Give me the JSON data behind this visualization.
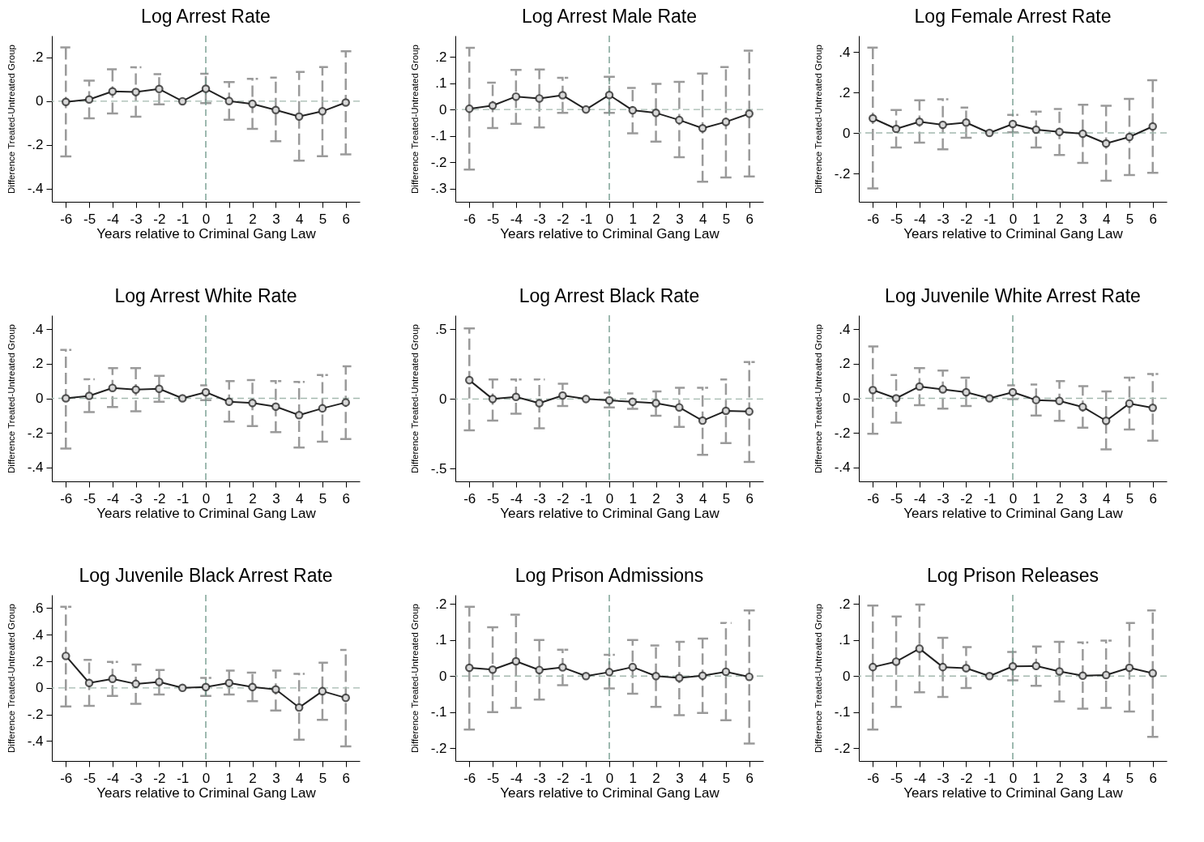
{
  "chart_data": [
    {
      "type": "line",
      "title": "Log Arrest Rate",
      "xlabel": "Years relative to Criminal Gang Law",
      "ylabel": "Difference Treated-Untreated Group",
      "color": "#222222",
      "marker": "circle",
      "line_style": "solid",
      "grid": false,
      "x": [
        -6,
        -5,
        -4,
        -3,
        -2,
        -1,
        0,
        1,
        2,
        3,
        4,
        5,
        6
      ],
      "values": [
        -0.003,
        0.008,
        0.045,
        0.042,
        0.056,
        0,
        0.057,
        0.001,
        -0.012,
        -0.04,
        -0.07,
        -0.046,
        -0.006
      ],
      "errors": [
        [
          -0.252,
          0.246
        ],
        [
          -0.078,
          0.094
        ],
        [
          -0.056,
          0.146
        ],
        [
          -0.071,
          0.155
        ],
        [
          -0.014,
          0.124
        ],
        null,
        [
          -0.009,
          0.126
        ],
        [
          -0.085,
          0.088
        ],
        [
          -0.126,
          0.103
        ],
        [
          -0.183,
          0.108
        ],
        [
          -0.272,
          0.134
        ],
        [
          -0.251,
          0.156
        ],
        [
          -0.243,
          0.229
        ]
      ],
      "xlim": [
        -6.6,
        6.6
      ],
      "xticks": [
        -6,
        -5,
        -4,
        -3,
        -2,
        -1,
        0,
        1,
        2,
        3,
        4,
        5,
        6
      ],
      "ylim": [
        -0.46,
        0.3
      ],
      "yticks": [
        {
          "value": 0.2,
          "label": ".2"
        },
        {
          "value": 0,
          "label": "0"
        },
        {
          "value": -0.2,
          "label": "-.2"
        },
        {
          "value": -0.4,
          "label": "-.4"
        }
      ],
      "ref_lines": [
        {
          "axis": "x",
          "value": 0,
          "color": "#6a9486",
          "line_style": "dashed"
        },
        {
          "axis": "y",
          "value": 0,
          "color": "#a3b8ae",
          "line_style": "dashed"
        }
      ]
    },
    {
      "type": "line",
      "title": "Log Arrest Male Rate",
      "xlabel": "Years relative to Criminal Gang Law",
      "ylabel": "Difference Treated-Untreated Group",
      "color": "#222222",
      "marker": "circle",
      "line_style": "solid",
      "grid": false,
      "x": [
        -6,
        -5,
        -4,
        -3,
        -2,
        -1,
        0,
        1,
        2,
        3,
        4,
        5,
        6
      ],
      "values": [
        0.003,
        0.015,
        0.049,
        0.042,
        0.054,
        0,
        0.055,
        -0.003,
        -0.013,
        -0.04,
        -0.071,
        -0.047,
        -0.016
      ],
      "errors": [
        [
          -0.228,
          0.234
        ],
        [
          -0.07,
          0.102
        ],
        [
          -0.054,
          0.15
        ],
        [
          -0.068,
          0.152
        ],
        [
          -0.013,
          0.12
        ],
        null,
        [
          -0.013,
          0.124
        ],
        [
          -0.09,
          0.082
        ],
        [
          -0.122,
          0.097
        ],
        [
          -0.181,
          0.105
        ],
        [
          -0.274,
          0.136
        ],
        [
          -0.258,
          0.161
        ],
        [
          -0.254,
          0.223
        ]
      ],
      "xlim": [
        -6.6,
        6.6
      ],
      "xticks": [
        -6,
        -5,
        -4,
        -3,
        -2,
        -1,
        0,
        1,
        2,
        3,
        4,
        5,
        6
      ],
      "ylim": [
        -0.35,
        0.28
      ],
      "yticks": [
        {
          "value": 0.2,
          "label": ".2"
        },
        {
          "value": 0.1,
          "label": ".1"
        },
        {
          "value": 0,
          "label": "0"
        },
        {
          "value": -0.1,
          "label": "-.1"
        },
        {
          "value": -0.2,
          "label": "-.2"
        },
        {
          "value": -0.3,
          "label": "-.3"
        }
      ],
      "ref_lines": [
        {
          "axis": "x",
          "value": 0,
          "color": "#6a9486",
          "line_style": "dashed"
        },
        {
          "axis": "y",
          "value": 0,
          "color": "#a3b8ae",
          "line_style": "dashed"
        }
      ]
    },
    {
      "type": "line",
      "title": "Log Female Arrest Rate",
      "xlabel": "Years relative to Criminal Gang Law",
      "ylabel": "Difference Treated-Untreated Group",
      "color": "#222222",
      "marker": "circle",
      "line_style": "solid",
      "grid": false,
      "x": [
        -6,
        -5,
        -4,
        -3,
        -2,
        -1,
        0,
        1,
        2,
        3,
        4,
        5,
        6
      ],
      "values": [
        0.072,
        0.02,
        0.055,
        0.04,
        0.051,
        0,
        0.044,
        0.016,
        0.005,
        -0.004,
        -0.052,
        -0.02,
        0.032
      ],
      "errors": [
        [
          -0.274,
          0.421
        ],
        [
          -0.072,
          0.113
        ],
        [
          -0.048,
          0.161
        ],
        [
          -0.081,
          0.166
        ],
        [
          -0.024,
          0.125
        ],
        null,
        [
          0.003,
          0.089
        ],
        [
          -0.072,
          0.105
        ],
        [
          -0.109,
          0.118
        ],
        [
          -0.148,
          0.139
        ],
        [
          -0.236,
          0.134
        ],
        [
          -0.208,
          0.168
        ],
        [
          -0.197,
          0.26
        ]
      ],
      "xlim": [
        -6.6,
        6.6
      ],
      "xticks": [
        -6,
        -5,
        -4,
        -3,
        -2,
        -1,
        0,
        1,
        2,
        3,
        4,
        5,
        6
      ],
      "ylim": [
        -0.34,
        0.48
      ],
      "yticks": [
        {
          "value": 0.4,
          "label": ".4"
        },
        {
          "value": 0.2,
          "label": ".2"
        },
        {
          "value": 0,
          "label": "0"
        },
        {
          "value": -0.2,
          "label": "-.2"
        }
      ],
      "ref_lines": [
        {
          "axis": "x",
          "value": 0,
          "color": "#6a9486",
          "line_style": "dashed"
        },
        {
          "axis": "y",
          "value": 0,
          "color": "#a3b8ae",
          "line_style": "dashed"
        }
      ]
    },
    {
      "type": "line",
      "title": "Log Arrest White Rate",
      "xlabel": "Years relative to Criminal Gang Law",
      "ylabel": "Difference Treated-Untreated Group",
      "color": "#222222",
      "marker": "circle",
      "line_style": "solid",
      "grid": false,
      "x": [
        -6,
        -5,
        -4,
        -3,
        -2,
        -1,
        0,
        1,
        2,
        3,
        4,
        5,
        6
      ],
      "values": [
        0,
        0.014,
        0.06,
        0.05,
        0.055,
        0,
        0.035,
        -0.02,
        -0.027,
        -0.048,
        -0.097,
        -0.058,
        -0.024
      ],
      "errors": [
        [
          -0.29,
          0.28
        ],
        [
          -0.08,
          0.11
        ],
        [
          -0.05,
          0.175
        ],
        [
          -0.075,
          0.175
        ],
        [
          -0.02,
          0.13
        ],
        null,
        [
          -0.01,
          0.075
        ],
        [
          -0.135,
          0.1
        ],
        [
          -0.16,
          0.105
        ],
        [
          -0.195,
          0.1
        ],
        [
          -0.285,
          0.095
        ],
        [
          -0.25,
          0.135
        ],
        [
          -0.235,
          0.185
        ]
      ],
      "xlim": [
        -6.6,
        6.6
      ],
      "xticks": [
        -6,
        -5,
        -4,
        -3,
        -2,
        -1,
        0,
        1,
        2,
        3,
        4,
        5,
        6
      ],
      "ylim": [
        -0.48,
        0.48
      ],
      "yticks": [
        {
          "value": 0.4,
          "label": ".4"
        },
        {
          "value": 0.2,
          "label": ".2"
        },
        {
          "value": 0,
          "label": "0"
        },
        {
          "value": -0.2,
          "label": "-.2"
        },
        {
          "value": -0.4,
          "label": "-.4"
        }
      ],
      "ref_lines": [
        {
          "axis": "x",
          "value": 0,
          "color": "#6a9486",
          "line_style": "dashed"
        },
        {
          "axis": "y",
          "value": 0,
          "color": "#a3b8ae",
          "line_style": "dashed"
        }
      ]
    },
    {
      "type": "line",
      "title": "Log Arrest Black Rate",
      "xlabel": "Years relative to Criminal Gang Law",
      "ylabel": "Difference Treated-Untreated Group",
      "color": "#222222",
      "marker": "circle",
      "line_style": "solid",
      "grid": false,
      "x": [
        -6,
        -5,
        -4,
        -3,
        -2,
        -1,
        0,
        1,
        2,
        3,
        4,
        5,
        6
      ],
      "values": [
        0.135,
        0,
        0.015,
        -0.03,
        0.025,
        0,
        -0.01,
        -0.02,
        -0.03,
        -0.06,
        -0.155,
        -0.085,
        -0.09
      ],
      "errors": [
        [
          -0.225,
          0.505
        ],
        [
          -0.155,
          0.14
        ],
        [
          -0.105,
          0.14
        ],
        [
          -0.21,
          0.14
        ],
        [
          -0.05,
          0.11
        ],
        null,
        [
          -0.06,
          0.045
        ],
        [
          -0.07,
          0.04
        ],
        [
          -0.12,
          0.055
        ],
        [
          -0.2,
          0.08
        ],
        [
          -0.4,
          0.08
        ],
        [
          -0.315,
          0.14
        ],
        [
          -0.45,
          0.265
        ]
      ],
      "xlim": [
        -6.6,
        6.6
      ],
      "xticks": [
        -6,
        -5,
        -4,
        -3,
        -2,
        -1,
        0,
        1,
        2,
        3,
        4,
        5,
        6
      ],
      "ylim": [
        -0.59,
        0.6
      ],
      "yticks": [
        {
          "value": 0.5,
          "label": ".5"
        },
        {
          "value": 0,
          "label": "0"
        },
        {
          "value": -0.5,
          "label": "-.5"
        }
      ],
      "ref_lines": [
        {
          "axis": "x",
          "value": 0,
          "color": "#6a9486",
          "line_style": "dashed"
        },
        {
          "axis": "y",
          "value": 0,
          "color": "#a3b8ae",
          "line_style": "dashed"
        }
      ]
    },
    {
      "type": "line",
      "title": "Log Juvenile White Arrest Rate",
      "xlabel": "Years relative to Criminal Gang Law",
      "ylabel": "Difference Treated-Untreated Group",
      "color": "#222222",
      "marker": "circle",
      "line_style": "solid",
      "grid": false,
      "x": [
        -6,
        -5,
        -4,
        -3,
        -2,
        -1,
        0,
        1,
        2,
        3,
        4,
        5,
        6
      ],
      "values": [
        0.048,
        0,
        0.068,
        0.052,
        0.035,
        0,
        0.035,
        -0.01,
        -0.015,
        -0.05,
        -0.13,
        -0.03,
        -0.055
      ],
      "errors": [
        [
          -0.205,
          0.3
        ],
        [
          -0.14,
          0.135
        ],
        [
          -0.04,
          0.175
        ],
        [
          -0.06,
          0.16
        ],
        [
          -0.045,
          0.12
        ],
        null,
        [
          -0.005,
          0.075
        ],
        [
          -0.1,
          0.08
        ],
        [
          -0.13,
          0.1
        ],
        [
          -0.17,
          0.07
        ],
        [
          -0.295,
          0.04
        ],
        [
          -0.18,
          0.12
        ],
        [
          -0.245,
          0.14
        ]
      ],
      "xlim": [
        -6.6,
        6.6
      ],
      "xticks": [
        -6,
        -5,
        -4,
        -3,
        -2,
        -1,
        0,
        1,
        2,
        3,
        4,
        5,
        6
      ],
      "ylim": [
        -0.48,
        0.48
      ],
      "yticks": [
        {
          "value": 0.4,
          "label": ".4"
        },
        {
          "value": 0.2,
          "label": ".2"
        },
        {
          "value": 0,
          "label": "0"
        },
        {
          "value": -0.2,
          "label": "-.2"
        },
        {
          "value": -0.4,
          "label": "-.4"
        }
      ],
      "ref_lines": [
        {
          "axis": "x",
          "value": 0,
          "color": "#6a9486",
          "line_style": "dashed"
        },
        {
          "axis": "y",
          "value": 0,
          "color": "#a3b8ae",
          "line_style": "dashed"
        }
      ]
    },
    {
      "type": "line",
      "title": "Log Juvenile Black Arrest Rate",
      "xlabel": "Years relative to Criminal Gang Law",
      "ylabel": "Difference Treated-Untreated Group",
      "color": "#222222",
      "marker": "circle",
      "line_style": "solid",
      "grid": false,
      "x": [
        -6,
        -5,
        -4,
        -3,
        -2,
        -1,
        0,
        1,
        2,
        3,
        4,
        5,
        6
      ],
      "values": [
        0.24,
        0.037,
        0.068,
        0.03,
        0.045,
        0,
        0.006,
        0.037,
        0.006,
        -0.012,
        -0.148,
        -0.025,
        -0.075
      ],
      "errors": [
        [
          -0.14,
          0.61
        ],
        [
          -0.135,
          0.21
        ],
        [
          -0.06,
          0.195
        ],
        [
          -0.12,
          0.175
        ],
        [
          -0.05,
          0.135
        ],
        null,
        [
          -0.06,
          0.075
        ],
        [
          -0.05,
          0.13
        ],
        [
          -0.1,
          0.115
        ],
        [
          -0.17,
          0.13
        ],
        [
          -0.39,
          0.105
        ],
        [
          -0.24,
          0.19
        ],
        [
          -0.44,
          0.285
        ]
      ],
      "xlim": [
        -6.6,
        6.6
      ],
      "xticks": [
        -6,
        -5,
        -4,
        -3,
        -2,
        -1,
        0,
        1,
        2,
        3,
        4,
        5,
        6
      ],
      "ylim": [
        -0.55,
        0.7
      ],
      "yticks": [
        {
          "value": 0.6,
          "label": ".6"
        },
        {
          "value": 0.4,
          "label": ".4"
        },
        {
          "value": 0.2,
          "label": ".2"
        },
        {
          "value": 0,
          "label": "0"
        },
        {
          "value": -0.2,
          "label": "-.2"
        },
        {
          "value": -0.4,
          "label": "-.4"
        }
      ],
      "ref_lines": [
        {
          "axis": "x",
          "value": 0,
          "color": "#6a9486",
          "line_style": "dashed"
        },
        {
          "axis": "y",
          "value": 0,
          "color": "#a3b8ae",
          "line_style": "dashed"
        }
      ]
    },
    {
      "type": "line",
      "title": "Log Prison Admissions",
      "xlabel": "Years relative to Criminal Gang Law",
      "ylabel": "Difference Treated-Untreated Group",
      "color": "#222222",
      "marker": "circle",
      "line_style": "solid",
      "grid": false,
      "x": [
        -6,
        -5,
        -4,
        -3,
        -2,
        -1,
        0,
        1,
        2,
        3,
        4,
        5,
        6
      ],
      "values": [
        0.023,
        0.018,
        0.041,
        0.017,
        0.024,
        0,
        0.011,
        0.025,
        0,
        -0.005,
        0.001,
        0.012,
        -0.002
      ],
      "errors": [
        [
          -0.148,
          0.192
        ],
        [
          -0.1,
          0.135
        ],
        [
          -0.088,
          0.17
        ],
        [
          -0.065,
          0.1
        ],
        [
          -0.025,
          0.073
        ],
        null,
        [
          -0.034,
          0.059
        ],
        [
          -0.049,
          0.1
        ],
        [
          -0.085,
          0.085
        ],
        [
          -0.108,
          0.095
        ],
        [
          -0.102,
          0.104
        ],
        [
          -0.122,
          0.147
        ],
        [
          -0.187,
          0.182
        ]
      ],
      "xlim": [
        -6.6,
        6.6
      ],
      "xticks": [
        -6,
        -5,
        -4,
        -3,
        -2,
        -1,
        0,
        1,
        2,
        3,
        4,
        5,
        6
      ],
      "ylim": [
        -0.235,
        0.225
      ],
      "yticks": [
        {
          "value": 0.2,
          "label": ".2"
        },
        {
          "value": 0.1,
          "label": ".1"
        },
        {
          "value": 0,
          "label": "0"
        },
        {
          "value": -0.1,
          "label": "-.1"
        },
        {
          "value": -0.2,
          "label": "-.2"
        }
      ],
      "ref_lines": [
        {
          "axis": "x",
          "value": 0,
          "color": "#6a9486",
          "line_style": "dashed"
        },
        {
          "axis": "y",
          "value": 0,
          "color": "#a3b8ae",
          "line_style": "dashed"
        }
      ]
    },
    {
      "type": "line",
      "title": "Log Prison Releases",
      "xlabel": "Years relative to Criminal Gang Law",
      "ylabel": "Difference Treated-Untreated Group",
      "color": "#222222",
      "marker": "circle",
      "line_style": "solid",
      "grid": false,
      "x": [
        -6,
        -5,
        -4,
        -3,
        -2,
        -1,
        0,
        1,
        2,
        3,
        4,
        5,
        6
      ],
      "values": [
        0.025,
        0.04,
        0.076,
        0.025,
        0.022,
        0,
        0.027,
        0.028,
        0.013,
        0.001,
        0.003,
        0.023,
        0.008
      ],
      "errors": [
        [
          -0.148,
          0.195
        ],
        [
          -0.085,
          0.165
        ],
        [
          -0.045,
          0.198
        ],
        [
          -0.058,
          0.106
        ],
        [
          -0.033,
          0.08
        ],
        null,
        [
          -0.012,
          0.067
        ],
        [
          -0.027,
          0.082
        ],
        [
          -0.07,
          0.095
        ],
        [
          -0.09,
          0.093
        ],
        [
          -0.088,
          0.098
        ],
        [
          -0.098,
          0.147
        ],
        [
          -0.168,
          0.182
        ]
      ],
      "xlim": [
        -6.6,
        6.6
      ],
      "xticks": [
        -6,
        -5,
        -4,
        -3,
        -2,
        -1,
        0,
        1,
        2,
        3,
        4,
        5,
        6
      ],
      "ylim": [
        -0.235,
        0.225
      ],
      "yticks": [
        {
          "value": 0.2,
          "label": ".2"
        },
        {
          "value": 0.1,
          "label": ".1"
        },
        {
          "value": 0,
          "label": "0"
        },
        {
          "value": -0.1,
          "label": "-.1"
        },
        {
          "value": -0.2,
          "label": "-.2"
        }
      ],
      "ref_lines": [
        {
          "axis": "x",
          "value": 0,
          "color": "#6a9486",
          "line_style": "dashed"
        },
        {
          "axis": "y",
          "value": 0,
          "color": "#a3b8ae",
          "line_style": "dashed"
        }
      ]
    }
  ]
}
